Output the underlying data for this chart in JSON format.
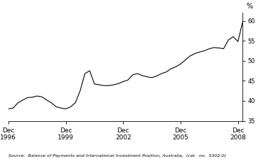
{
  "title": "",
  "ylabel": "%",
  "source_text": "Source:  Balance of Payments and International Investment Position, Australia,  (cat.  no.  5302.0)",
  "ylim": [
    35,
    62
  ],
  "yticks": [
    35,
    40,
    45,
    50,
    55,
    60
  ],
  "line_color": "#000000",
  "line_width": 0.8,
  "background_color": "#ffffff",
  "x_tick_labels": [
    "Dec\n1996",
    "Dec\n1999",
    "Dec\n2002",
    "Dec\n2005",
    "Dec\n2008"
  ],
  "x_tick_positions": [
    0,
    12,
    24,
    36,
    48
  ],
  "data_quarterly": [
    38.0,
    38.2,
    39.5,
    40.2,
    40.8,
    40.9,
    41.2,
    41.0,
    40.2,
    39.5,
    38.5,
    38.2,
    38.0,
    38.5,
    39.5,
    42.5,
    46.8,
    47.5,
    44.2,
    44.0,
    43.8,
    43.8,
    44.0,
    44.3,
    44.8,
    45.2,
    46.5,
    46.8,
    46.3,
    46.0,
    45.8,
    46.2,
    46.8,
    47.2,
    48.0,
    48.5,
    49.2,
    50.2,
    51.2,
    51.8,
    52.2,
    52.5,
    53.0,
    53.3,
    53.2,
    53.0,
    55.2,
    56.0,
    54.8,
    59.8
  ]
}
